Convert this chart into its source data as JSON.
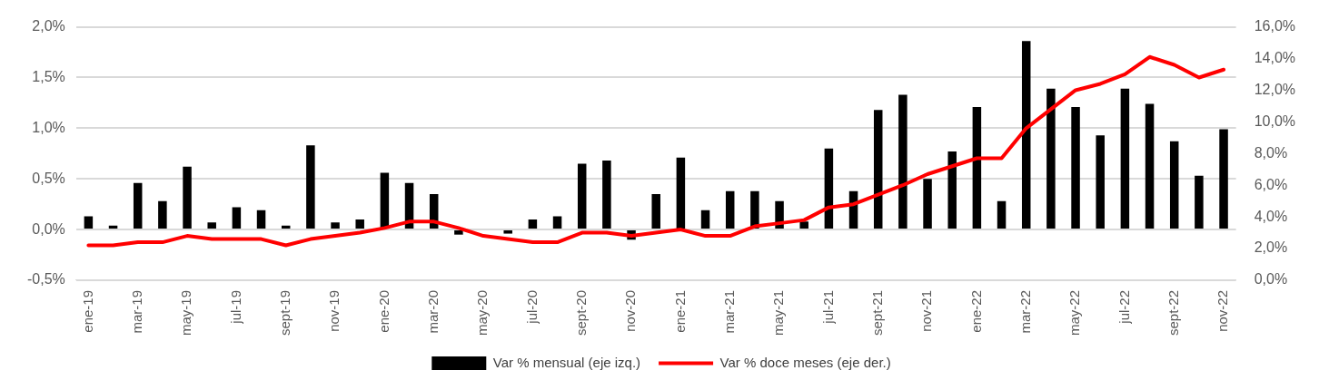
{
  "chart_data": {
    "type": "bar",
    "categories": [
      "ene-19",
      null,
      "mar-19",
      null,
      "may-19",
      null,
      "jul-19",
      null,
      "sept-19",
      null,
      "nov-19",
      null,
      "ene-20",
      null,
      "mar-20",
      null,
      "may-20",
      null,
      "jul-20",
      null,
      "sept-20",
      null,
      "nov-20",
      null,
      "ene-21",
      null,
      "mar-21",
      null,
      "may-21",
      null,
      "jul-21",
      null,
      "sept-21",
      null,
      "nov-21",
      null,
      "ene-22",
      null,
      "mar-22",
      null,
      "may-22",
      null,
      "jul-22",
      null,
      "sept-22",
      null,
      "nov-22"
    ],
    "series": [
      {
        "name": "Var % mensual (eje izq.)",
        "color": "#000000",
        "values": [
          0.13,
          0.04,
          0.46,
          0.28,
          0.62,
          0.07,
          0.22,
          0.19,
          0.04,
          0.83,
          0.07,
          0.1,
          0.56,
          0.46,
          0.35,
          -0.05,
          0.0,
          -0.04,
          0.1,
          0.13,
          0.65,
          0.68,
          -0.1,
          0.35,
          0.71,
          0.19,
          0.38,
          0.38,
          0.28,
          0.08,
          0.8,
          0.38,
          1.18,
          1.33,
          0.5,
          0.77,
          1.21,
          0.28,
          1.86,
          1.39,
          1.21,
          0.93,
          1.39,
          1.24,
          0.87,
          0.53,
          0.99
        ]
      },
      {
        "name": "Var % doce meses (eje der.)",
        "type": "line",
        "axis": "y2",
        "color": "#ff0000",
        "marker": "none",
        "values": [
          2.2,
          2.2,
          2.4,
          2.4,
          2.8,
          2.6,
          2.6,
          2.6,
          2.2,
          2.6,
          2.8,
          3.0,
          3.3,
          3.7,
          3.7,
          3.3,
          2.8,
          2.6,
          2.4,
          2.4,
          3.0,
          3.0,
          2.8,
          3.0,
          3.2,
          2.8,
          2.8,
          3.4,
          3.6,
          3.8,
          4.6,
          4.8,
          5.4,
          6.0,
          6.7,
          7.2,
          7.7,
          7.7,
          9.6,
          10.8,
          12.0,
          12.4,
          13.0,
          14.1,
          13.6,
          12.8,
          13.3
        ]
      }
    ],
    "ylim": [
      -0.5,
      2.0
    ],
    "yticks": [
      {
        "value": -0.5,
        "label": "-0,5%"
      },
      {
        "value": 0,
        "label": "0,0%"
      },
      {
        "value": 0.5,
        "label": "0,5%"
      },
      {
        "value": 1.0,
        "label": "1,0%"
      },
      {
        "value": 1.5,
        "label": "1,5%"
      },
      {
        "value": 2.0,
        "label": "2,0%"
      }
    ],
    "y2lim": [
      0,
      16
    ],
    "y2ticks": [
      {
        "value": 0,
        "label": "0,0%"
      },
      {
        "value": 2,
        "label": "2,0%"
      },
      {
        "value": 4,
        "label": "4,0%"
      },
      {
        "value": 6,
        "label": "6,0%"
      },
      {
        "value": 8,
        "label": "8,0%"
      },
      {
        "value": 10,
        "label": "10,0%"
      },
      {
        "value": 12,
        "label": "12,0%"
      },
      {
        "value": 14,
        "label": "14,0%"
      },
      {
        "value": 16,
        "label": "16,0%"
      }
    ],
    "grid": "y",
    "legend": "bottom"
  }
}
